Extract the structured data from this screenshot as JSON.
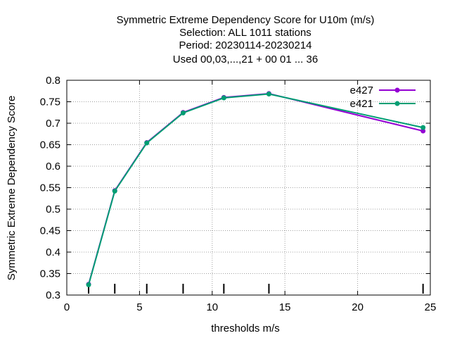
{
  "chart_data": {
    "type": "line",
    "title_lines": [
      "Symmetric Extreme Dependency Score  for U10m (m/s)",
      "Selection: ALL   1011 stations",
      "Period: 20230114-20230214",
      "Used  00,03,...,21  + 00 01 ... 36"
    ],
    "xlabel": "thresholds m/s",
    "ylabel": "Symmetric Extreme Dependency Score",
    "xlim": [
      0,
      25
    ],
    "ylim": [
      0.3,
      0.8
    ],
    "x_ticks": [
      "0",
      "5",
      "10",
      "15",
      "20",
      "25"
    ],
    "y_ticks": [
      "0.3",
      "0.35",
      "0.4",
      "0.45",
      "0.5",
      "0.55",
      "0.6",
      "0.65",
      "0.7",
      "0.75",
      "0.8"
    ],
    "grid": true,
    "legend_position": "top-right",
    "threshold_markers": [
      1.5,
      3.3,
      5.5,
      8.0,
      10.8,
      13.9,
      24.5
    ],
    "series": [
      {
        "name": "e427",
        "color": "#9400d3",
        "x": [
          1.5,
          3.3,
          5.5,
          8.0,
          10.8,
          13.9,
          24.5
        ],
        "y": [
          0.325,
          0.543,
          0.655,
          0.725,
          0.76,
          0.769,
          0.682
        ]
      },
      {
        "name": "e421",
        "color": "#009e73",
        "x": [
          1.5,
          3.3,
          5.5,
          8.0,
          10.8,
          13.9,
          24.5
        ],
        "y": [
          0.324,
          0.542,
          0.654,
          0.724,
          0.759,
          0.768,
          0.69
        ]
      }
    ]
  }
}
